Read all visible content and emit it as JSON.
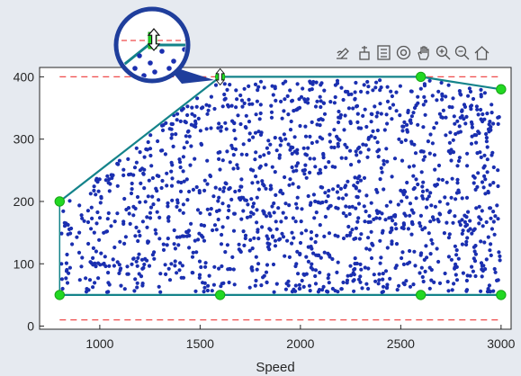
{
  "toolbar": {
    "icons": [
      "brush-icon",
      "paint-icon",
      "legend-icon",
      "rotate-icon",
      "pan-hand-icon",
      "zoom-in-icon",
      "zoom-out-icon",
      "home-icon"
    ]
  },
  "magnifier": {
    "icon": "magnifier-lens-icon",
    "cursor_icon": "resize-vertical-cursor-icon"
  },
  "chart_data": {
    "type": "scatter",
    "title": "",
    "xlabel": "Speed",
    "ylabel": "",
    "xlim": [
      700,
      3050
    ],
    "ylim": [
      -5,
      415
    ],
    "xticks": [
      1000,
      1500,
      2000,
      2500,
      3000
    ],
    "yticks": [
      0,
      100,
      200,
      300,
      400
    ],
    "grid": false,
    "boundary": {
      "upper_x": [
        800,
        1600,
        2600,
        3000
      ],
      "upper_y": [
        200,
        400,
        400,
        380
      ],
      "lower_x": [
        800,
        1600,
        2600,
        3000
      ],
      "lower_y": [
        50,
        50,
        50,
        50
      ],
      "color": "#14838a"
    },
    "control_points": {
      "x": [
        800,
        800,
        1600,
        2600,
        3000,
        3000,
        2600,
        1600
      ],
      "y": [
        200,
        50,
        400,
        400,
        380,
        50,
        50,
        50
      ],
      "color": "#22d822"
    },
    "limit_lines": {
      "y": [
        400,
        10
      ],
      "x_range": [
        800,
        3000
      ],
      "color": "#ef4b4b"
    },
    "scatter": {
      "color": "#1a2fb0",
      "description": "uniformly distributed operating points inside the boundary"
    }
  }
}
